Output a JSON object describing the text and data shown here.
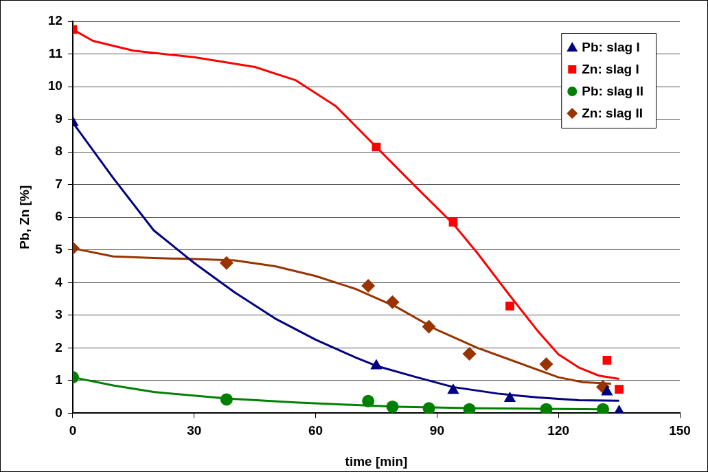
{
  "chart_data": {
    "type": "scatter",
    "xlabel": "time [min]",
    "ylabel": "Pb, Zn [%]",
    "xlim": [
      0,
      150
    ],
    "xticks": [
      0,
      30,
      60,
      90,
      120,
      150
    ],
    "ylim": [
      0,
      12
    ],
    "yticks": [
      0,
      1,
      2,
      3,
      4,
      5,
      6,
      7,
      8,
      9,
      10,
      11,
      12
    ],
    "grid": "y",
    "legend": "top right",
    "series": [
      {
        "name": "Pb: slag I",
        "color": "#000080",
        "marker": "triangle",
        "x": [
          0,
          75,
          94,
          108,
          132,
          135
        ],
        "values": [
          8.9,
          1.45,
          0.7,
          0.45,
          0.65,
          0.05
        ]
      },
      {
        "name": "Zn: slag I",
        "color": "#ff0000",
        "marker": "square",
        "x": [
          0,
          75,
          94,
          108,
          132,
          135
        ],
        "values": [
          11.75,
          8.15,
          5.85,
          3.28,
          1.62,
          0.73
        ]
      },
      {
        "name": "Pb: slag II",
        "color": "#008000",
        "marker": "circle",
        "x": [
          0,
          38,
          73,
          79,
          88,
          98,
          117,
          131
        ],
        "values": [
          1.1,
          0.42,
          0.37,
          0.2,
          0.15,
          0.12,
          0.12,
          0.12
        ]
      },
      {
        "name": "Zn: slag II",
        "color": "#993300",
        "marker": "diamond",
        "x": [
          0,
          38,
          73,
          79,
          88,
          98,
          117,
          131
        ],
        "values": [
          5.05,
          4.6,
          3.9,
          3.4,
          2.65,
          1.82,
          1.5,
          0.8
        ]
      },
      {
        "type": "line",
        "color": "#000080",
        "marker": "none",
        "x": [
          0,
          10,
          20,
          30,
          40,
          50,
          60,
          70,
          75,
          85,
          94,
          105,
          115,
          125,
          135
        ],
        "values": [
          8.9,
          7.2,
          5.6,
          4.6,
          3.7,
          2.9,
          2.25,
          1.7,
          1.45,
          1.1,
          0.8,
          0.6,
          0.48,
          0.4,
          0.38
        ]
      },
      {
        "type": "line",
        "color": "#ff0000",
        "marker": "none",
        "x": [
          0,
          5,
          15,
          30,
          45,
          55,
          65,
          75,
          85,
          94,
          100,
          108,
          115,
          120,
          125,
          130,
          135
        ],
        "values": [
          11.75,
          11.4,
          11.1,
          10.9,
          10.6,
          10.2,
          9.4,
          8.15,
          6.9,
          5.8,
          4.9,
          3.6,
          2.5,
          1.8,
          1.4,
          1.15,
          1.05
        ]
      },
      {
        "type": "line",
        "color": "#008000",
        "marker": "none",
        "x": [
          0,
          10,
          20,
          38,
          55,
          70,
          80,
          100,
          131
        ],
        "values": [
          1.1,
          0.85,
          0.65,
          0.45,
          0.33,
          0.25,
          0.2,
          0.15,
          0.12
        ]
      },
      {
        "type": "line",
        "color": "#993300",
        "marker": "none",
        "x": [
          0,
          10,
          20,
          30,
          40,
          50,
          60,
          70,
          80,
          90,
          100,
          110,
          120,
          126,
          133
        ],
        "values": [
          5.05,
          4.8,
          4.75,
          4.72,
          4.68,
          4.5,
          4.2,
          3.8,
          3.25,
          2.55,
          2,
          1.55,
          1.1,
          0.95,
          0.9
        ]
      }
    ]
  }
}
